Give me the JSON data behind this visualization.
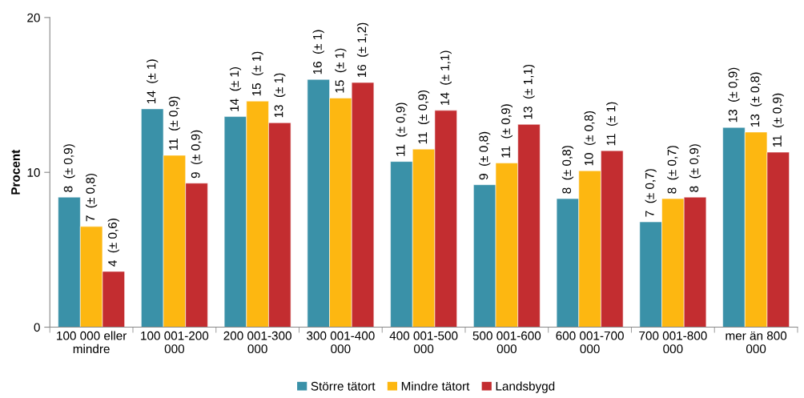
{
  "chart_data": {
    "type": "bar",
    "ylabel": "Procent",
    "categories": [
      "100 000 eller\nmindre",
      "100 001-200\n000",
      "200 001-300\n000",
      "300 001-400\n000",
      "400 001-500\n000",
      "500 001-600\n000",
      "600 001-700\n000",
      "700 001-800\n000",
      "mer än 800\n000"
    ],
    "series": [
      {
        "name": "Större tätort",
        "color": "#3a91a8",
        "values": [
          8.4,
          14.1,
          13.6,
          16.0,
          10.7,
          9.2,
          8.3,
          6.8,
          12.9
        ],
        "value_labels": [
          "8  (± 0,9)",
          "14  (± 1)",
          "14  (± 1)",
          "16  (± 1)",
          "11  (± 0,9)",
          "9  (± 0,8)",
          "8  (± 0,8)",
          "7  (± 0,7)",
          "13  (± 0,9)"
        ]
      },
      {
        "name": "Mindre tätort",
        "color": "#fdb711",
        "values": [
          6.5,
          11.1,
          14.6,
          14.8,
          11.5,
          10.6,
          10.1,
          8.3,
          12.6
        ],
        "value_labels": [
          "7  (± 0,8)",
          "11  (± 0,9)",
          "15  (± 1)",
          "15  (± 1)",
          "11  (± 0,9)",
          "11  (± 0,9)",
          "10  (± 0,8)",
          "8  (± 0,7)",
          "13  (± 0,8)"
        ]
      },
      {
        "name": "Landsbygd",
        "color": "#c32d30",
        "values": [
          3.6,
          9.3,
          13.2,
          15.8,
          14.0,
          13.1,
          11.4,
          8.4,
          11.3
        ],
        "value_labels": [
          "4  (± 0,6)",
          "9  (± 0,9)",
          "13  (± 1)",
          "16  (± 1,2)",
          "14  (± 1,1)",
          "13  (± 1,1)",
          "11  (± 1)",
          "8  (± 0,9)",
          "11  (± 0,9)"
        ]
      }
    ],
    "ylim": [
      0,
      20
    ],
    "yticks": [
      0,
      10,
      20
    ],
    "grid": false,
    "legend": "bottom"
  }
}
